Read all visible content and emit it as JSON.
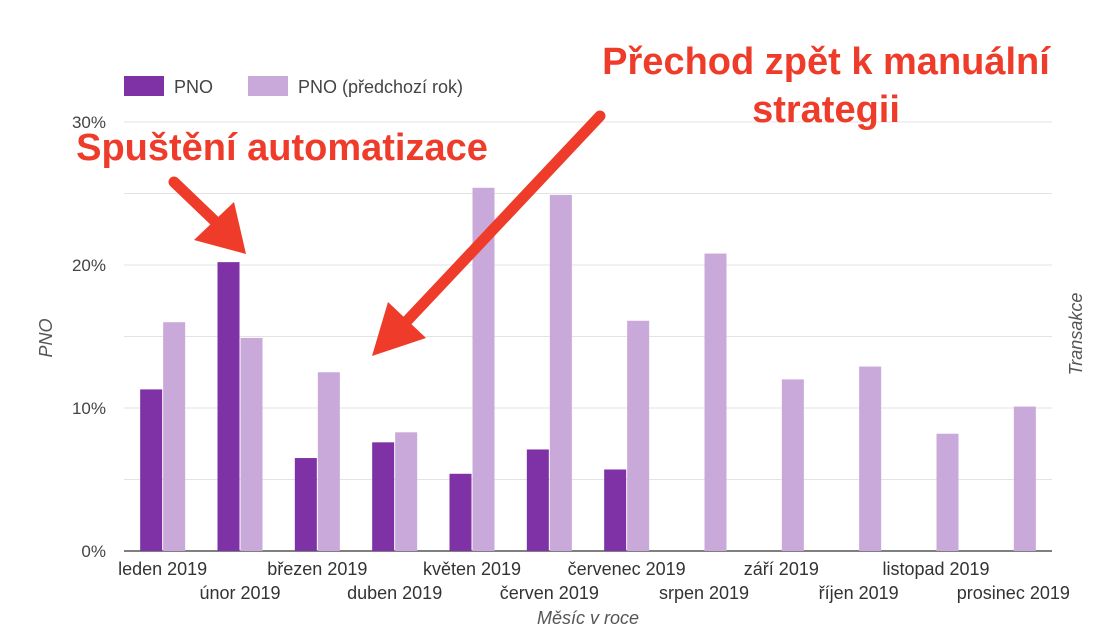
{
  "chart_data": {
    "type": "bar",
    "categories": [
      "leden 2019",
      "únor 2019",
      "březen 2019",
      "duben 2019",
      "květen 2019",
      "červen 2019",
      "červenec 2019",
      "srpen 2019",
      "září 2019",
      "říjen 2019",
      "listopad 2019",
      "prosinec 2019"
    ],
    "series": [
      {
        "name": "PNO",
        "color": "#7e32a5",
        "values": [
          11.3,
          20.2,
          6.5,
          7.6,
          5.4,
          7.1,
          5.7,
          null,
          null,
          null,
          null,
          null
        ]
      },
      {
        "name": "PNO (předchozí rok)",
        "color": "#c9a8da",
        "values": [
          16.0,
          14.9,
          12.5,
          8.3,
          25.4,
          24.9,
          16.1,
          20.8,
          12.0,
          12.9,
          8.2,
          10.1
        ]
      }
    ],
    "ylim": [
      0,
      30
    ],
    "yticks": [
      "0%",
      "10%",
      "20%",
      "30%"
    ],
    "xlabel": "Měsíc v roce",
    "ylabel": "PNO",
    "y2label": "Transakce",
    "grid": true,
    "legend": "top-left",
    "annotations": [
      {
        "text": "Spuštění automatizace",
        "color": "#ee3b2a"
      },
      {
        "text": "Přechod zpět k manuální strategii",
        "lines": [
          "Přechod zpět k manuální",
          "strategii"
        ],
        "color": "#ee3b2a"
      }
    ]
  }
}
